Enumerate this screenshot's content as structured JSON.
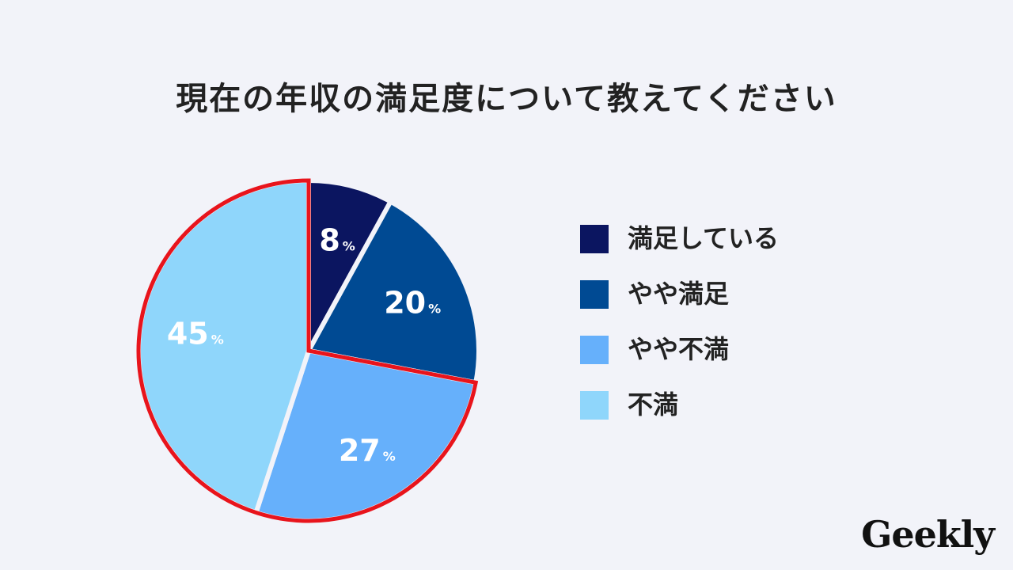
{
  "title": "現在の年収の満足度について教えてください",
  "logo": "Geekly",
  "chart_data": {
    "type": "pie",
    "title": "現在の年収の満足度について教えてください",
    "unit": "%",
    "slices": [
      {
        "label": "満足している",
        "value": 8,
        "color": "#0b1560"
      },
      {
        "label": "やや満足",
        "value": 20,
        "color": "#004a93"
      },
      {
        "label": "やや不満",
        "value": 27,
        "color": "#66b0fb"
      },
      {
        "label": "不満",
        "value": 45,
        "color": "#8fd6fb"
      }
    ],
    "highlighted": [
      "やや不満",
      "不満"
    ],
    "highlight_color": "#e8141c",
    "legend_placement": "right"
  }
}
